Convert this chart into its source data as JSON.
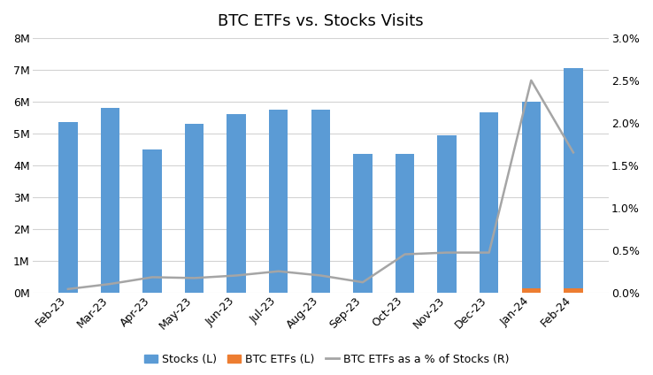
{
  "categories": [
    "Feb-23",
    "Mar-23",
    "Apr-23",
    "May-23",
    "Jun-23",
    "Jul-23",
    "Aug-23",
    "Sep-23",
    "Oct-23",
    "Nov-23",
    "Dec-23",
    "Jan-24",
    "Feb-24"
  ],
  "stocks_visits": [
    5350000,
    5800000,
    4500000,
    5300000,
    5600000,
    5750000,
    5750000,
    4350000,
    4350000,
    4950000,
    5650000,
    6000000,
    7050000
  ],
  "btc_etf_visits": [
    0,
    0,
    0,
    0,
    0,
    0,
    0,
    0,
    0,
    0,
    0,
    130000,
    130000
  ],
  "btc_pct_of_stocks": [
    0.04,
    0.1,
    0.18,
    0.17,
    0.2,
    0.25,
    0.2,
    0.12,
    0.45,
    0.47,
    0.47,
    2.5,
    1.65
  ],
  "title": "BTC ETFs vs. Stocks Visits",
  "bar_color_stocks": "#5B9BD5",
  "bar_color_btc": "#ED7D31",
  "line_color": "#A5A5A5",
  "ylim_left": [
    0,
    8000000
  ],
  "ylim_right": [
    0,
    3.0
  ],
  "yticks_left": [
    0,
    1000000,
    2000000,
    3000000,
    4000000,
    5000000,
    6000000,
    7000000,
    8000000
  ],
  "yticks_right": [
    0.0,
    0.5,
    1.0,
    1.5,
    2.0,
    2.5,
    3.0
  ],
  "legend_labels": [
    "Stocks (L)",
    "BTC ETFs (L)",
    "BTC ETFs as a % of Stocks (R)"
  ],
  "title_fontsize": 13,
  "tick_fontsize": 9,
  "legend_fontsize": 9,
  "bar_width": 0.45,
  "figure_width": 7.38,
  "figure_height": 4.24
}
